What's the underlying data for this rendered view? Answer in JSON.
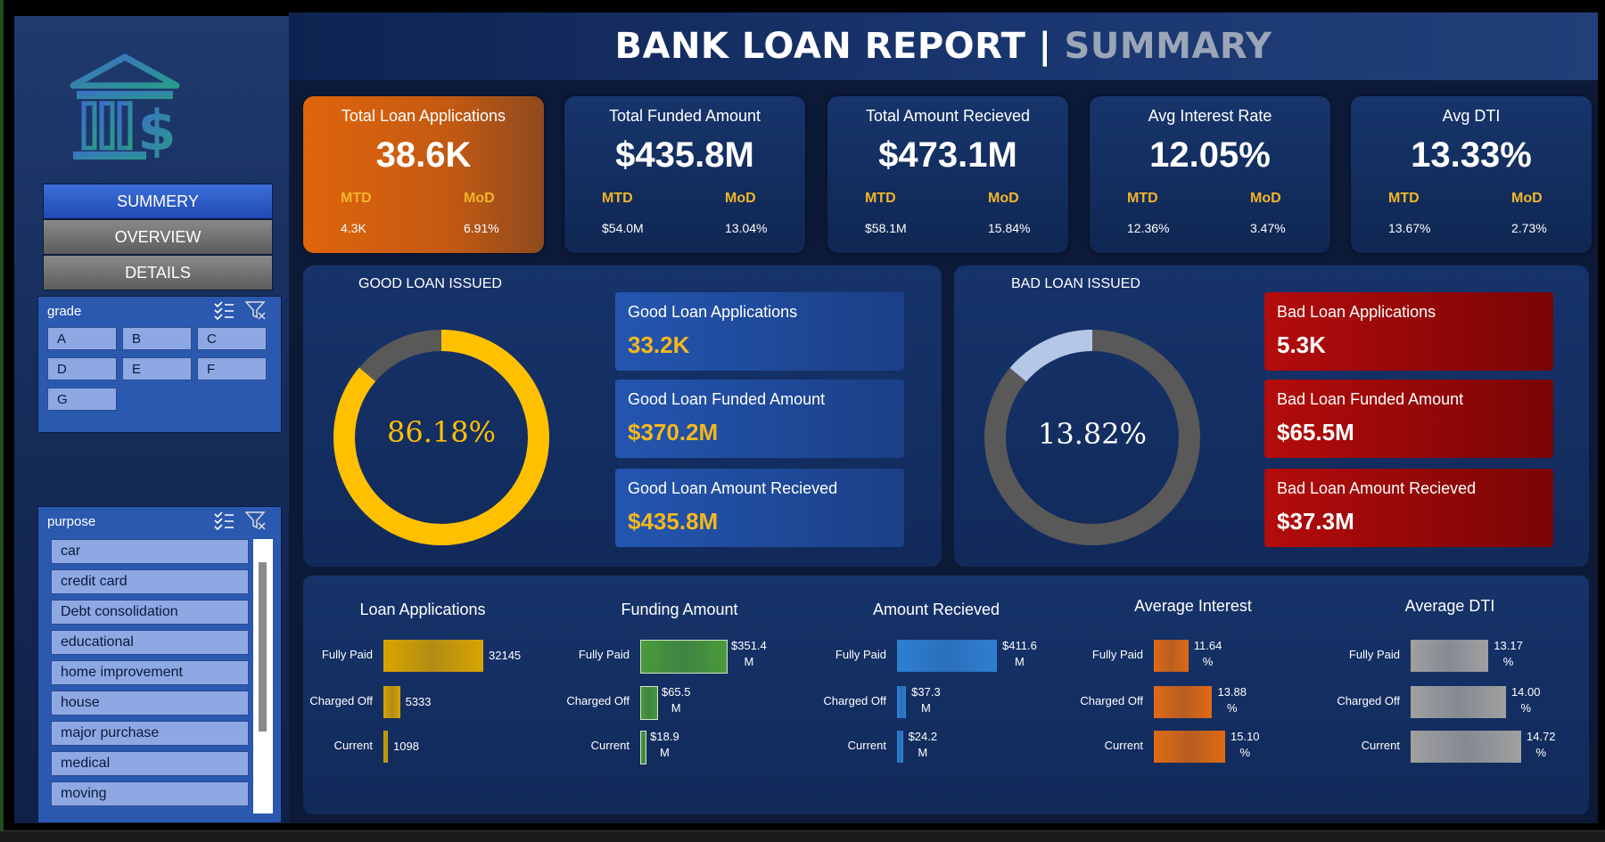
{
  "header": {
    "title": "BANK LOAN REPORT",
    "separator": "|",
    "subtitle": "SUMMARY"
  },
  "sidebar": {
    "logo_icon": "bank-dollar-icon",
    "nav": [
      {
        "label": "SUMMERY",
        "active": true
      },
      {
        "label": "OVERVIEW",
        "active": false
      },
      {
        "label": "DETAILS",
        "active": false
      }
    ],
    "grade_slicer": {
      "title": "grade",
      "items": [
        "A",
        "B",
        "C",
        "D",
        "E",
        "F",
        "G"
      ]
    },
    "purpose_slicer": {
      "title": "purpose",
      "items": [
        "car",
        "credit card",
        "Debt consolidation",
        "educational",
        "home improvement",
        "house",
        "major purchase",
        "medical",
        "moving"
      ]
    }
  },
  "kpis": [
    {
      "title": "Total Loan Applications",
      "value": "38.6K",
      "mtd_label": "MTD",
      "mod_label": "MoD",
      "mtd_value": "4.3K",
      "mod_value": "6.91%",
      "style": "orange"
    },
    {
      "title": "Total Funded Amount",
      "value": "$435.8M",
      "mtd_label": "MTD",
      "mod_label": "MoD",
      "mtd_value": "$54.0M",
      "mod_value": "13.04%",
      "style": "blue"
    },
    {
      "title": "Total Amount Recieved",
      "value": "$473.1M",
      "mtd_label": "MTD",
      "mod_label": "MoD",
      "mtd_value": "$58.1M",
      "mod_value": "15.84%",
      "style": "blue"
    },
    {
      "title": "Avg Interest Rate",
      "value": "12.05%",
      "mtd_label": "MTD",
      "mod_label": "MoD",
      "mtd_value": "12.36%",
      "mod_value": "3.47%",
      "style": "blue"
    },
    {
      "title": "Avg DTI",
      "value": "13.33%",
      "mtd_label": "MTD",
      "mod_label": "MoD",
      "mtd_value": "13.67%",
      "mod_value": "2.73%",
      "style": "blue"
    }
  ],
  "good_loan": {
    "title": "GOOD LOAN ISSUED",
    "percent_label": "86.18%",
    "percent": 86.18,
    "colors": {
      "fill": "#ffc000",
      "rest": "#595959"
    },
    "cards": [
      {
        "label": "Good Loan Applications",
        "value": "33.2K"
      },
      {
        "label": "Good Loan Funded Amount",
        "value": "$370.2M"
      },
      {
        "label": "Good Loan Amount Recieved",
        "value": "$435.8M"
      }
    ]
  },
  "bad_loan": {
    "title": "BAD LOAN ISSUED",
    "percent_label": "13.82%",
    "percent": 13.82,
    "colors": {
      "fill": "#b4c7e7",
      "rest": "#595959"
    },
    "cards": [
      {
        "label": "Bad Loan Applications",
        "value": "5.3K"
      },
      {
        "label": "Bad Loan Funded Amount",
        "value": "$65.5M"
      },
      {
        "label": "Bad Loan Amount Recieved",
        "value": "$37.3M"
      }
    ]
  },
  "chart_data": [
    {
      "type": "bar",
      "title": "Loan Applications",
      "categories": [
        "Fully Paid",
        "Charged Off",
        "Current"
      ],
      "values": [
        32145,
        5333,
        1098
      ],
      "labels": [
        [
          "32145"
        ],
        [
          "5333"
        ],
        [
          "1098"
        ]
      ],
      "color": "#d9a400"
    },
    {
      "type": "bar",
      "title": "Funding Amount",
      "categories": [
        "Fully Paid",
        "Charged Off",
        "Current"
      ],
      "values": [
        351.4,
        65.5,
        18.9
      ],
      "labels": [
        [
          "$351.4",
          "M"
        ],
        [
          "$65.5",
          "M"
        ],
        [
          "$18.9",
          "M"
        ]
      ],
      "color": "#4a9a3a"
    },
    {
      "type": "bar",
      "title": "Amount Recieved",
      "categories": [
        "Fully Paid",
        "Charged Off",
        "Current"
      ],
      "values": [
        411.6,
        37.3,
        24.2
      ],
      "labels": [
        [
          "$411.6",
          "M"
        ],
        [
          "$37.3",
          "M"
        ],
        [
          "$24.2",
          "M"
        ]
      ],
      "color": "#2f7fd0"
    },
    {
      "type": "bar",
      "title": "Average Interest",
      "categories": [
        "Fully Paid",
        "Charged Off",
        "Current"
      ],
      "values": [
        11.64,
        13.88,
        15.1
      ],
      "labels": [
        [
          "11.64",
          "%"
        ],
        [
          "13.88",
          "%"
        ],
        [
          "15.10",
          "%"
        ]
      ],
      "color": "#e06a14"
    },
    {
      "type": "bar",
      "title": "Average DTI",
      "categories": [
        "Fully Paid",
        "Charged Off",
        "Current"
      ],
      "values": [
        13.17,
        14.0,
        14.72
      ],
      "labels": [
        [
          "13.17",
          "%"
        ],
        [
          "14.00",
          "%"
        ],
        [
          "14.72",
          "%"
        ]
      ],
      "color": "#a0a0a0"
    }
  ]
}
